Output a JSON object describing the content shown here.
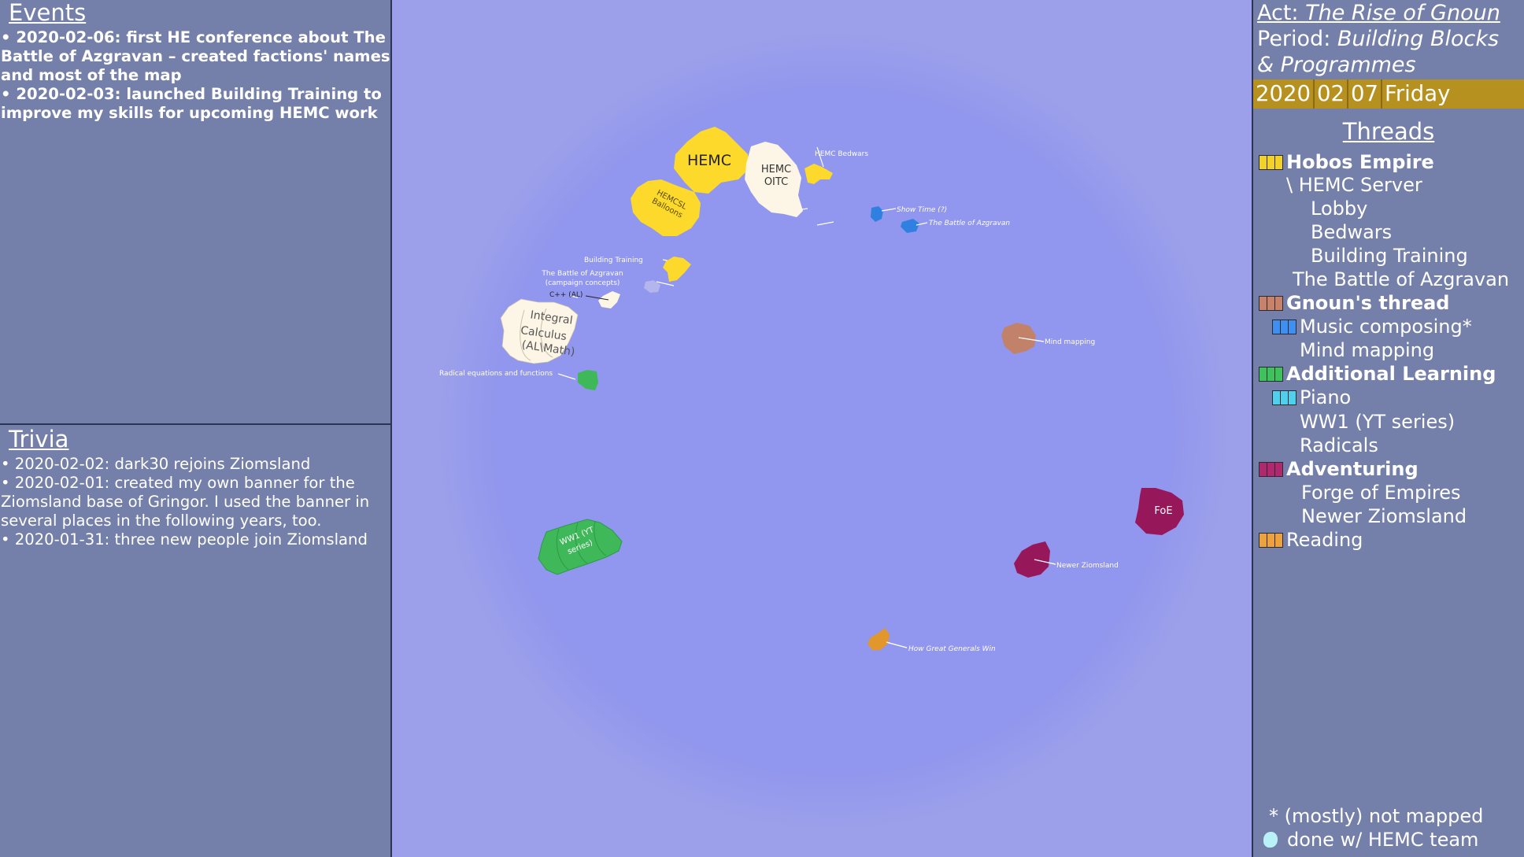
{
  "events": {
    "title": "Events",
    "items": [
      "• 2020-02-06: first HE conference about The Battle of Azgravan – created factions' names and most of the map",
      "• 2020-02-03: launched Building Training to improve my skills for upcoming HEMC work"
    ]
  },
  "trivia": {
    "title": "Trivia",
    "items": [
      "• 2020-02-02: dark30 rejoins Ziomsland",
      "• 2020-02-01: created my own banner for the Ziomsland base of Gringor. I used the banner in several places in the following years, too.",
      "• 2020-01-31: three new people join Ziomsland"
    ]
  },
  "header": {
    "act_label": "Act: ",
    "act_name": "The Rise of Gnoun",
    "period_label": "Period: ",
    "period_name_1": "Building Blocks",
    "period_name_2": "& Programmes"
  },
  "date": {
    "year": "2020",
    "month": "02",
    "day": "07",
    "weekday": "Friday"
  },
  "threads": {
    "title": "Threads",
    "items": [
      {
        "label": "Hobos Empire",
        "colors": [
          "#f2d22a",
          "#f2d22a",
          "#f2d22a"
        ]
      },
      {
        "label": "\\ HEMC Server"
      },
      {
        "label": "Lobby"
      },
      {
        "label": "Bedwars"
      },
      {
        "label": "Building Training"
      },
      {
        "label": "The Battle of Azgravan"
      },
      {
        "label": "Gnoun's thread",
        "colors": [
          "#c8826a",
          "#c8826a",
          "#c8826a"
        ]
      },
      {
        "label": "Music composing*",
        "colors": [
          "#3f8ff0",
          "#3f8ff0",
          "#3f8ff0"
        ]
      },
      {
        "label": "Mind mapping"
      },
      {
        "label": "Additional Learning",
        "colors": [
          "#3ec35c",
          "#3ec35c",
          "#3ec35c"
        ]
      },
      {
        "label": "Piano",
        "colors": [
          "#4fd0ec",
          "#4fd0ec",
          "#4fd0ec"
        ]
      },
      {
        "label": "WW1 (YT series)"
      },
      {
        "label": "Radicals"
      },
      {
        "label": "Adventuring",
        "colors": [
          "#b0286e",
          "#b0286e",
          "#b0286e"
        ]
      },
      {
        "label": "Forge of Empires"
      },
      {
        "label": "Newer Ziomsland"
      },
      {
        "label": "Reading",
        "colors": [
          "#eea23f",
          "#eea23f",
          "#eea23f"
        ]
      }
    ]
  },
  "legend": {
    "star": "* (mostly) not mapped",
    "dot": "done w/ HEMC team",
    "dot_color": "#b8f2f6"
  },
  "map": {
    "labels": {
      "hemc": "HEMC",
      "hemc_oitc_1": "HEMC",
      "hemc_oitc_2": "OITC",
      "hemc_bedwars": "HEMC Bedwars",
      "hemcsl_1": "HEMCSL",
      "hemcsl_2": "Balloons",
      "show_time": "Show Time (?)",
      "battle_azgravan": "The Battle of Azgravan",
      "building_training": "Building Training",
      "battle_campaign_1": "The Battle of Azgravan",
      "battle_campaign_2": "(campaign concepts)",
      "cpp": "C++ (AL)",
      "integral_1": "Integral",
      "integral_2": "Calculus",
      "integral_3": "(AL\\Math)",
      "radical": "Radical equations and functions",
      "mind_mapping": "Mind mapping",
      "foe": "FoE",
      "newer_ziomsland": "Newer Ziomsland",
      "ww1_1": "WW1 (YT",
      "ww1_2": "series)",
      "great_generals": "How Great Generals Win"
    },
    "colors": {
      "hobos": "#fcd92a",
      "white": "#fdf6e6",
      "music": "#2f80e0",
      "campaign": "#b3b5ec",
      "mind": "#c2826a",
      "learning": "#3fb85a",
      "adventure": "#96185a",
      "reading": "#e2972c"
    }
  }
}
